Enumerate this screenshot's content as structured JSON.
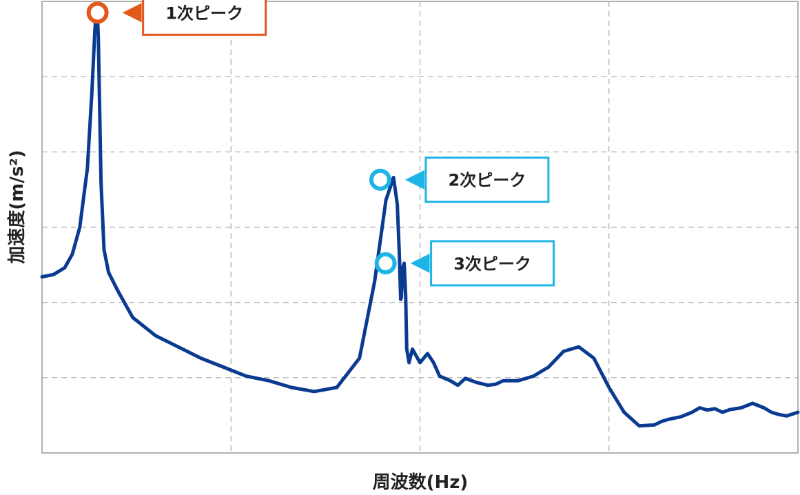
{
  "chart_data": {
    "type": "line",
    "title": "",
    "xlabel": "周波数(Hz)",
    "ylabel": "加速度(m/s²)",
    "xlim": [
      0,
      1
    ],
    "ylim": [
      0,
      1
    ],
    "grid": true,
    "series": [
      {
        "name": "",
        "color": "#0a3b91",
        "x": [
          0.0,
          0.015,
          0.03,
          0.04,
          0.05,
          0.06,
          0.066,
          0.07,
          0.072,
          0.0735,
          0.0745,
          0.076,
          0.078,
          0.082,
          0.088,
          0.1,
          0.12,
          0.15,
          0.18,
          0.21,
          0.24,
          0.27,
          0.3,
          0.33,
          0.36,
          0.39,
          0.42,
          0.44,
          0.455,
          0.465,
          0.47,
          0.4725,
          0.4745,
          0.4755,
          0.477,
          0.479,
          0.481,
          0.4825,
          0.4835,
          0.4855,
          0.487,
          0.49,
          0.5,
          0.51,
          0.518,
          0.526,
          0.54,
          0.55,
          0.56,
          0.575,
          0.59,
          0.6,
          0.61,
          0.63,
          0.65,
          0.67,
          0.69,
          0.71,
          0.73,
          0.75,
          0.77,
          0.79,
          0.81,
          0.82,
          0.83,
          0.845,
          0.86,
          0.87,
          0.88,
          0.89,
          0.9,
          0.91,
          0.925,
          0.94,
          0.955,
          0.965,
          0.975,
          0.985,
          1.0
        ],
        "y": [
          0.39,
          0.395,
          0.41,
          0.44,
          0.5,
          0.63,
          0.8,
          0.94,
          0.975,
          0.965,
          0.92,
          0.78,
          0.6,
          0.45,
          0.4,
          0.36,
          0.3,
          0.26,
          0.235,
          0.21,
          0.19,
          0.17,
          0.16,
          0.145,
          0.136,
          0.145,
          0.21,
          0.38,
          0.56,
          0.61,
          0.55,
          0.45,
          0.34,
          0.345,
          0.41,
          0.42,
          0.35,
          0.23,
          0.22,
          0.2,
          0.21,
          0.23,
          0.2,
          0.22,
          0.2,
          0.17,
          0.16,
          0.15,
          0.165,
          0.156,
          0.15,
          0.152,
          0.16,
          0.16,
          0.17,
          0.19,
          0.225,
          0.235,
          0.21,
          0.145,
          0.09,
          0.06,
          0.062,
          0.07,
          0.075,
          0.08,
          0.09,
          0.1,
          0.095,
          0.098,
          0.09,
          0.096,
          0.1,
          0.11,
          0.1,
          0.09,
          0.085,
          0.082,
          0.09
        ]
      }
    ],
    "annotations": [
      {
        "label": "1次ピーク",
        "x": 0.0735,
        "y": 0.975,
        "color": "#e2591b"
      },
      {
        "label": "2次ピーク",
        "x": 0.4475,
        "y": 0.605,
        "color": "#1fb4e6"
      },
      {
        "label": "3次ピーク",
        "x": 0.4545,
        "y": 0.42,
        "color": "#1fb4e6"
      }
    ]
  }
}
